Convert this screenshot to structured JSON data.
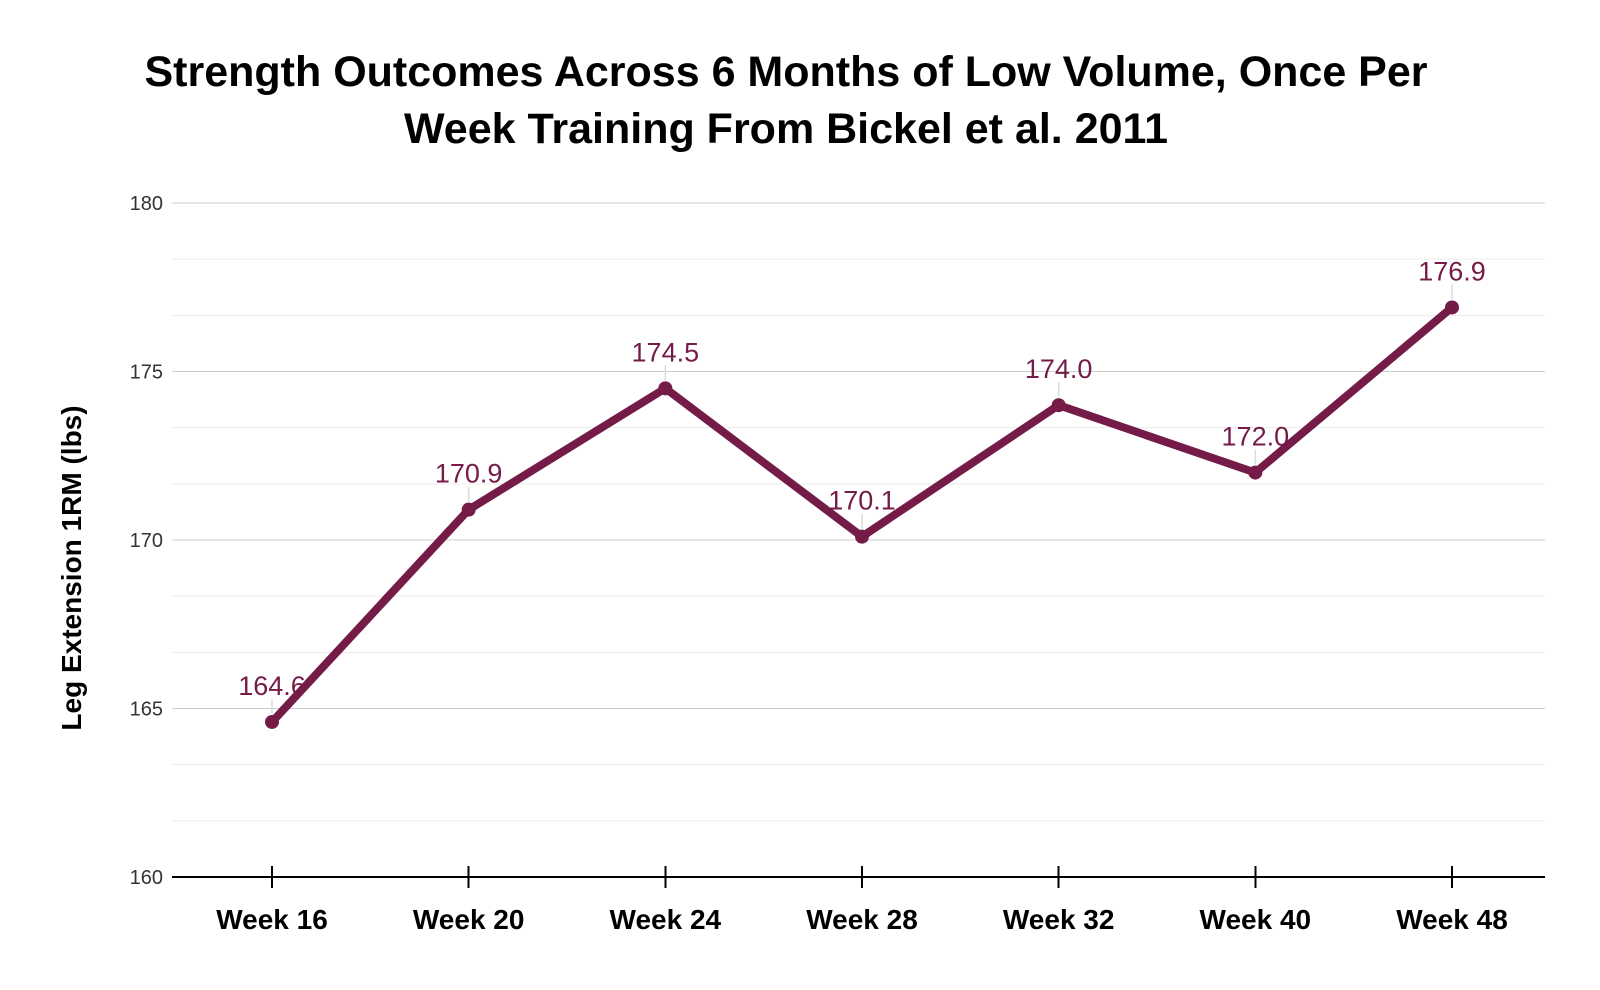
{
  "chart_data": {
    "type": "line",
    "title": "Strength Outcomes Across 6 Months of Low Volume, Once Per Week Training From Bickel et al. 2011",
    "title_lines": [
      "Strength Outcomes Across 6 Months of Low Volume, Once Per",
      "Week Training From Bickel et al. 2011"
    ],
    "ylabel": "Leg Extension 1RM (lbs)",
    "xlabel": "",
    "categories": [
      "Week 16",
      "Week 20",
      "Week 24",
      "Week 28",
      "Week 32",
      "Week 40",
      "Week 48"
    ],
    "series": [
      {
        "name": "Leg Extension 1RM",
        "values": [
          164.6,
          170.9,
          174.5,
          170.1,
          174.0,
          172.0,
          176.9
        ]
      }
    ],
    "data_labels": [
      "164.6",
      "170.9",
      "174.5",
      "170.1",
      "174.0",
      "172.0",
      "176.9"
    ],
    "ylim": [
      160,
      180
    ],
    "yticks": [
      160,
      165,
      170,
      175,
      180
    ],
    "ytick_labels": [
      "160",
      "165",
      "170",
      "175",
      "180"
    ],
    "minor_grid_divisions_per_major": 3,
    "grid": "horizontal",
    "legend_position": "none",
    "colors": {
      "line": "#741b47",
      "marker": "#741b47",
      "data_label": "#741b47",
      "axis": "#000000",
      "major_grid": "#cccccc",
      "minor_grid": "#ececec",
      "ytick_label": "#333333",
      "xtick_label": "#000000",
      "background": "#ffffff"
    }
  }
}
